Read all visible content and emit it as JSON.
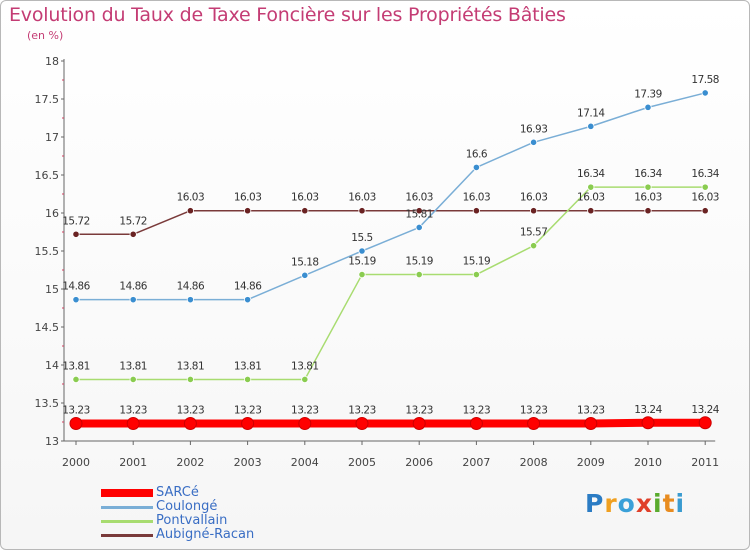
{
  "header": {
    "title": "Evolution du Taux de Taxe Foncière sur les Propriétés Bâties",
    "unit": "(en %)"
  },
  "logo": {
    "text": "Proxiti"
  },
  "chart_data": {
    "type": "line",
    "title": "Evolution du Taux de Taxe Foncière sur les Propriétés Bâties",
    "ylabel": "(en %)",
    "xlabel": "",
    "categories": [
      "2000",
      "2001",
      "2002",
      "2003",
      "2004",
      "2005",
      "2006",
      "2007",
      "2008",
      "2009",
      "2010",
      "2011"
    ],
    "ylim": [
      13,
      18
    ],
    "yticks": [
      "13",
      "13.5",
      "14",
      "14.5",
      "15",
      "15.5",
      "16",
      "16.5",
      "17",
      "17.5",
      "18"
    ],
    "grid": false,
    "legend_position": "bottom-left",
    "series": [
      {
        "name": "SARCé",
        "color": "#ff0000",
        "emphasis": true,
        "values": [
          13.23,
          13.23,
          13.23,
          13.23,
          13.23,
          13.23,
          13.23,
          13.23,
          13.23,
          13.23,
          13.24,
          13.24
        ],
        "labels": [
          "13.23",
          "13.23",
          "13.23",
          "13.23",
          "13.23",
          "13.23",
          "13.23",
          "13.23",
          "13.23",
          "13.23",
          "13.24",
          "13.24"
        ]
      },
      {
        "name": "Coulongé",
        "color": "#7aaed6",
        "marker": "#3a8ed0",
        "values": [
          14.86,
          14.86,
          14.86,
          14.86,
          15.18,
          15.5,
          15.81,
          16.6,
          16.93,
          17.14,
          17.39,
          17.58
        ],
        "labels": [
          "14.86",
          "14.86",
          "14.86",
          "14.86",
          "15.18",
          "15.5",
          "15.81",
          "16.6",
          "16.93",
          "17.14",
          "17.39",
          "17.58"
        ]
      },
      {
        "name": "Pontvallain",
        "color": "#a8dc70",
        "marker": "#8acc50",
        "values": [
          13.81,
          13.81,
          13.81,
          13.81,
          13.81,
          15.19,
          15.19,
          15.19,
          15.57,
          16.34,
          16.34,
          16.34
        ],
        "labels": [
          "13.81",
          "13.81",
          "13.81",
          "13.81",
          "13.81",
          "15.19",
          "15.19",
          "15.19",
          "15.57",
          "16.34",
          "16.34",
          "16.34"
        ]
      },
      {
        "name": "Aubigné-Racan",
        "color": "#7a3a3a",
        "marker": "#6a2222",
        "values": [
          15.72,
          15.72,
          16.03,
          16.03,
          16.03,
          16.03,
          16.03,
          16.03,
          16.03,
          16.03,
          16.03,
          16.03
        ],
        "labels": [
          "15.72",
          "15.72",
          "16.03",
          "16.03",
          "16.03",
          "16.03",
          "16.03",
          "16.03",
          "16.03",
          "16.03",
          "16.03",
          "16.03"
        ]
      }
    ]
  }
}
